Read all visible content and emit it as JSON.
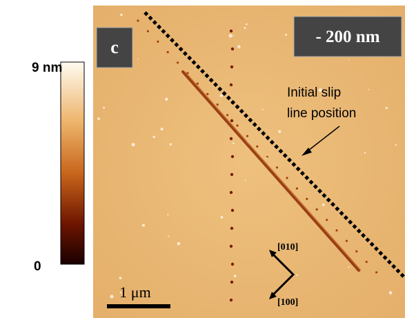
{
  "colorbar": {
    "max_label": "9 nm",
    "min_label": "0"
  },
  "image": {
    "panel_label": "c",
    "depth_label": "- 200 nm",
    "annotation": [
      "Initial slip",
      "line position"
    ],
    "directions": [
      "[010]",
      "[100]"
    ],
    "scale_bar": "1 μm"
  }
}
